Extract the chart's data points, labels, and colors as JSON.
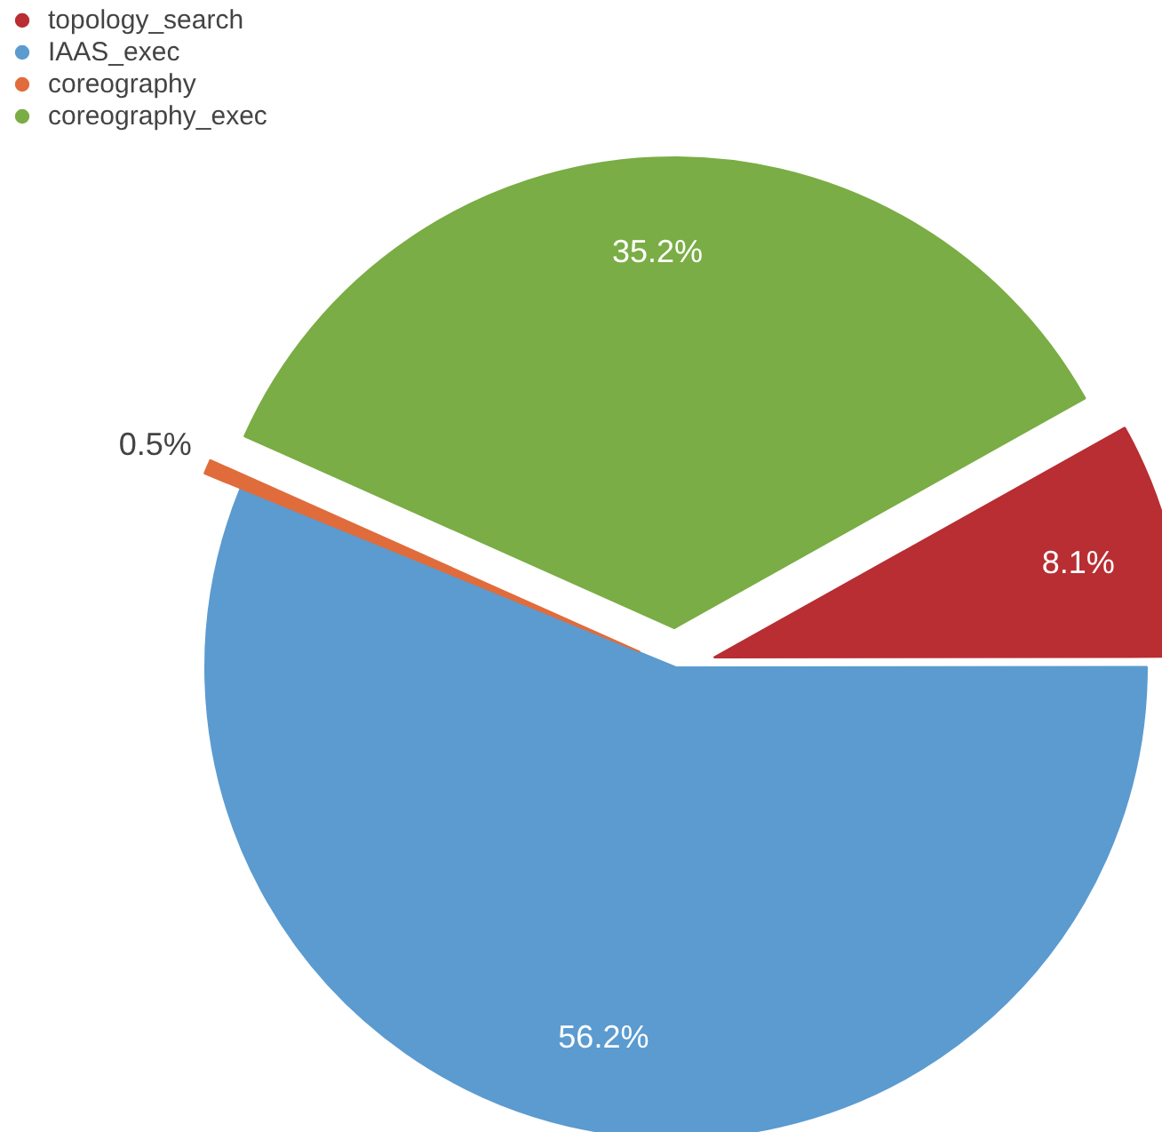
{
  "chart_data": {
    "type": "pie",
    "categories": [
      "topology_search",
      "IAAS_exec",
      "coreography",
      "coreography_exec"
    ],
    "values": [
      8.1,
      56.2,
      0.5,
      35.2
    ],
    "colors": [
      "#b82e33",
      "#5b9bd0",
      "#e06c3c",
      "#7aad45"
    ],
    "value_labels": [
      "8.1%",
      "56.2%",
      "0.5%",
      "35.2%"
    ],
    "legend": "top left"
  }
}
